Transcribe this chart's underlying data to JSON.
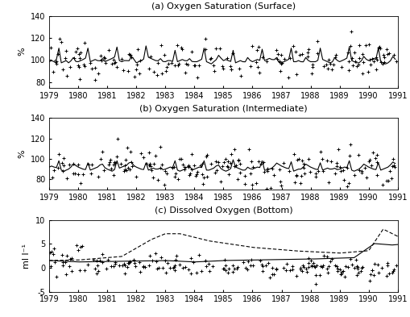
{
  "title_a": "(a) Oxygen Saturation (Surface)",
  "title_b": "(b) Oxygen Saturation (Intermediate)",
  "title_c": "(c) Dissolved Oxygen (Bottom)",
  "ylabel_a": "%",
  "ylabel_b": "%",
  "ylabel_c": "ml l⁻¹",
  "xlim": [
    1979,
    1991
  ],
  "ylim_a": [
    75,
    140
  ],
  "ylim_b": [
    70,
    140
  ],
  "ylim_c": [
    -5,
    10
  ],
  "yticks_a": [
    80,
    100,
    120,
    140
  ],
  "yticks_b": [
    80,
    100,
    120,
    140
  ],
  "yticks_c": [
    -5,
    0,
    5,
    10
  ],
  "xticks": [
    1979,
    1980,
    1981,
    1982,
    1983,
    1984,
    1985,
    1986,
    1987,
    1988,
    1989,
    1990,
    1991
  ],
  "line_color": "black",
  "scatter_marker": "+",
  "scatter_color": "black",
  "scatter_size": 12,
  "line_width": 0.8,
  "figsize": [
    5.09,
    3.93
  ],
  "dpi": 100
}
